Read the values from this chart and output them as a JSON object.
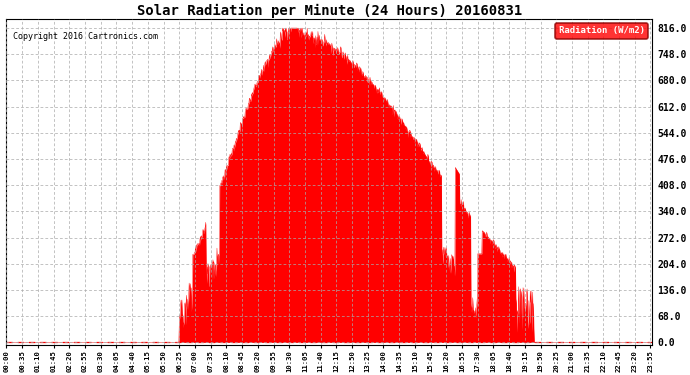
{
  "title": "Solar Radiation per Minute (24 Hours) 20160831",
  "copyright": "Copyright 2016 Cartronics.com",
  "legend_label": "Radiation (W/m2)",
  "fill_color": "#FF0000",
  "line_color": "#FF0000",
  "background_color": "#FFFFFF",
  "grid_color": "#AAAAAA",
  "yticks": [
    0.0,
    68.0,
    136.0,
    204.0,
    272.0,
    340.0,
    408.0,
    476.0,
    544.0,
    612.0,
    680.0,
    748.0,
    816.0
  ],
  "ymax": 840,
  "ymin": -8,
  "dashed_line_y": 0.0,
  "xtick_interval_minutes": 35,
  "total_minutes": 1440,
  "sunrise_min": 385,
  "sunset_min": 1175,
  "peak_value": 816.0,
  "peak_minute": 640
}
